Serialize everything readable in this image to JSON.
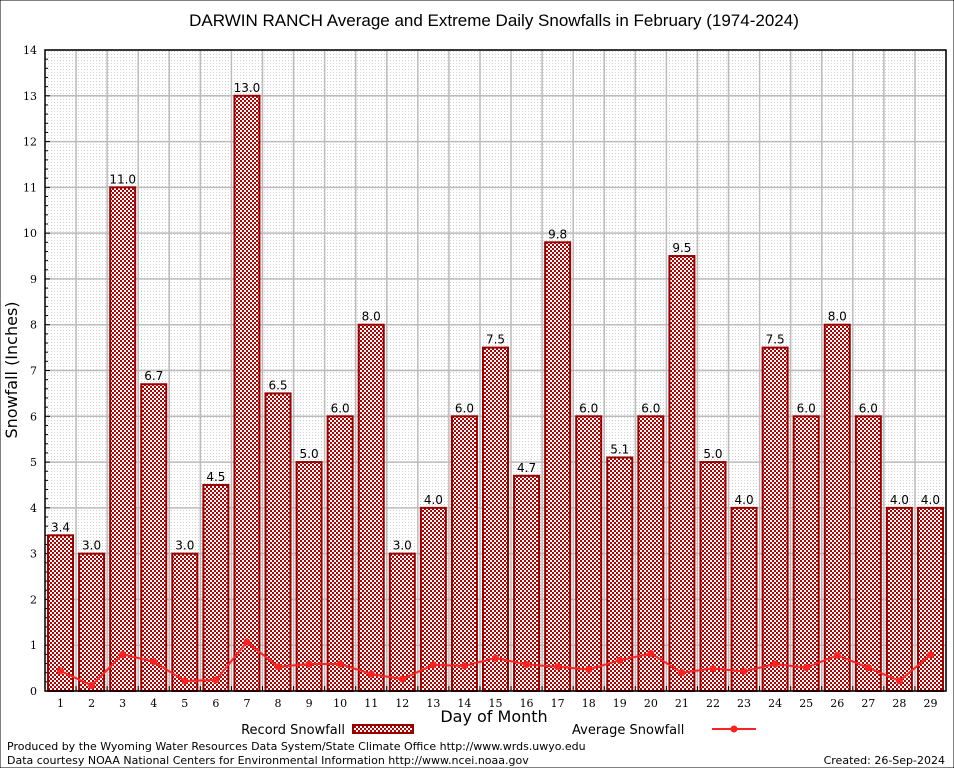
{
  "chart_data": {
    "type": "bar",
    "title": "DARWIN RANCH Average and Extreme Daily Snowfalls in February (1974-2024)",
    "xlabel": "Day of Month",
    "ylabel": "Snowfall (Inches)",
    "ylim": [
      0,
      14
    ],
    "yticks": [
      0,
      1,
      2,
      3,
      4,
      5,
      6,
      7,
      8,
      9,
      10,
      11,
      12,
      13,
      14
    ],
    "grid": true,
    "legend_placement": "bottom",
    "categories": [
      "1",
      "2",
      "3",
      "4",
      "5",
      "6",
      "7",
      "8",
      "9",
      "10",
      "11",
      "12",
      "13",
      "14",
      "15",
      "16",
      "17",
      "18",
      "19",
      "20",
      "21",
      "22",
      "23",
      "24",
      "25",
      "26",
      "27",
      "28",
      "29"
    ],
    "series": [
      {
        "name": "Record Snowfall",
        "type": "bar",
        "color": "#990000",
        "values": [
          3.4,
          3.0,
          11.0,
          6.7,
          3.0,
          4.5,
          13.0,
          6.5,
          5.0,
          6.0,
          8.0,
          3.0,
          4.0,
          6.0,
          7.5,
          4.7,
          9.8,
          6.0,
          5.1,
          6.0,
          9.5,
          5.0,
          4.0,
          7.5,
          6.0,
          8.0,
          6.0,
          4.0,
          4.0
        ],
        "labels": [
          "3.4",
          "3.0",
          "11.0",
          "6.7",
          "3.0",
          "4.5",
          "13.0",
          "6.5",
          "5.0",
          "6.0",
          "8.0",
          "3.0",
          "4.0",
          "6.0",
          "7.5",
          "4.7",
          "9.8",
          "6.0",
          "5.1",
          "6.0",
          "9.5",
          "5.0",
          "4.0",
          "7.5",
          "6.0",
          "8.0",
          "6.0",
          "4.0",
          "4.0"
        ]
      },
      {
        "name": "Average Snowfall",
        "type": "line",
        "color": "#ff2020",
        "values": [
          0.44,
          0.12,
          0.8,
          0.64,
          0.22,
          0.24,
          1.07,
          0.53,
          0.59,
          0.59,
          0.37,
          0.26,
          0.57,
          0.55,
          0.72,
          0.58,
          0.53,
          0.47,
          0.67,
          0.82,
          0.4,
          0.49,
          0.43,
          0.59,
          0.51,
          0.78,
          0.51,
          0.22,
          0.79
        ]
      }
    ]
  },
  "footer": {
    "produced": "Produced by the Wyoming Water Resources Data System/State Climate Office http://www.wrds.uwyo.edu",
    "courtesy": "Data courtesy NOAA National Centers for Environmental Information http://www.ncei.noaa.gov",
    "created": "Created:  26-Sep-2024"
  }
}
